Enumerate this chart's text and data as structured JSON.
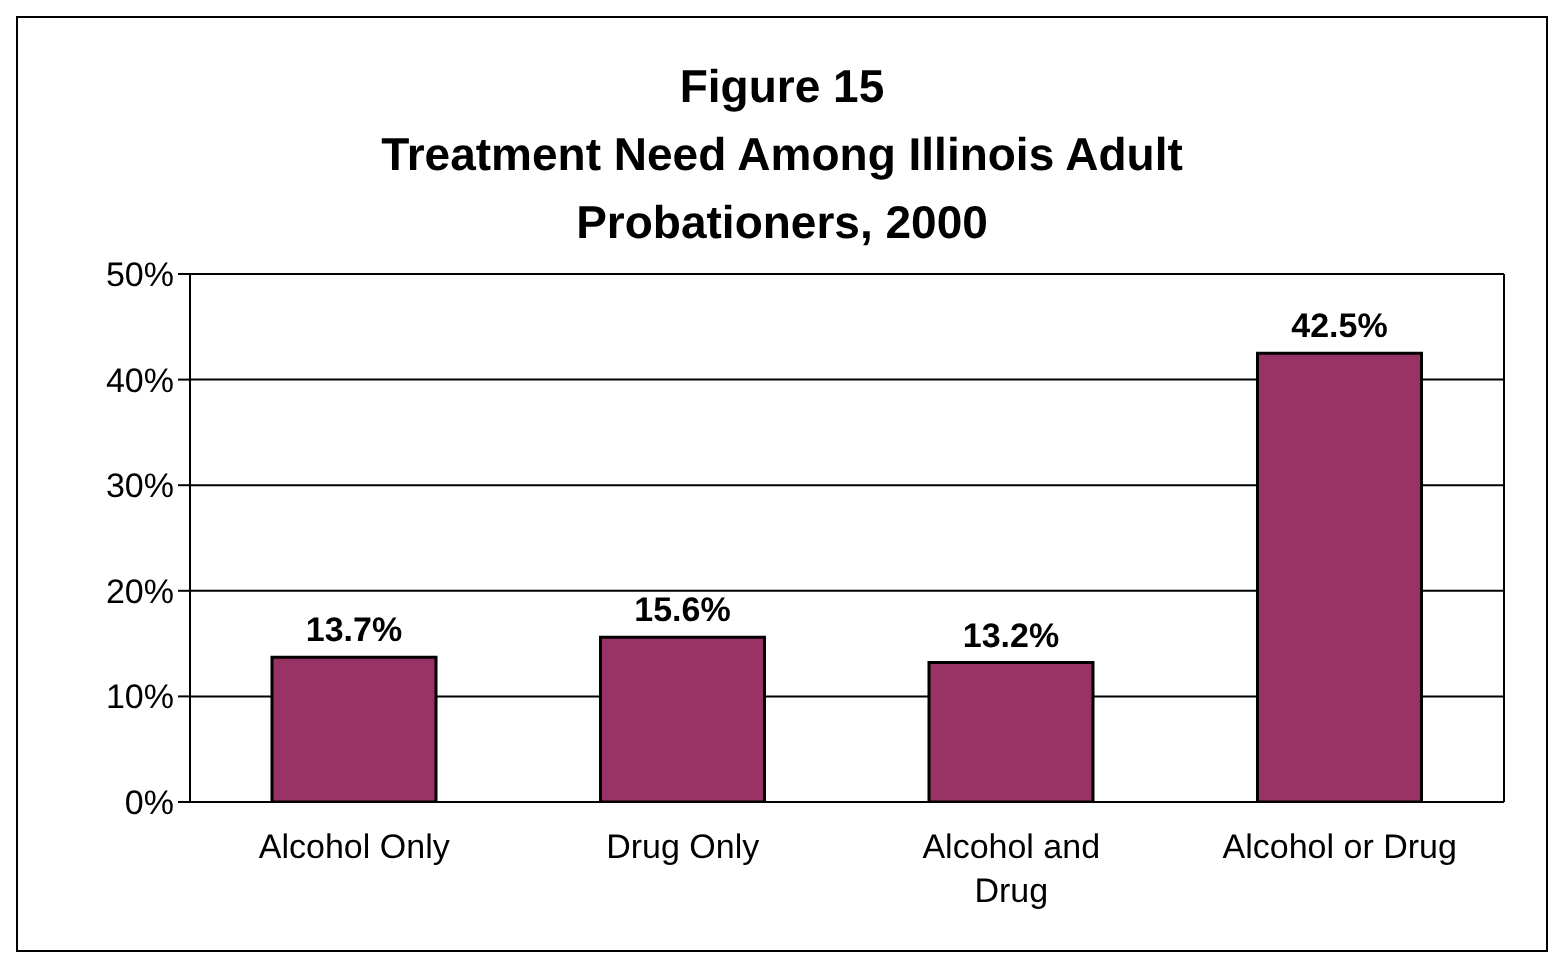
{
  "chart_data": {
    "type": "bar",
    "title": "Figure 15\nTreatment Need Among Illinois Adult\nProbationers, 2000",
    "categories": [
      "Alcohol Only",
      "Drug Only",
      "Alcohol and Drug",
      "Alcohol or Drug"
    ],
    "values": [
      13.7,
      15.6,
      13.2,
      42.5
    ],
    "color": "#993366",
    "ylim": [
      0,
      50
    ],
    "yticks": [
      {
        "value": 0,
        "label": "0%"
      },
      {
        "value": 10,
        "label": "10%"
      },
      {
        "value": 20,
        "label": "20%"
      },
      {
        "value": 30,
        "label": "30%"
      },
      {
        "value": 40,
        "label": "40%"
      },
      {
        "value": 50,
        "label": "50%"
      }
    ],
    "value_labels": [
      "13.7%",
      "15.6%",
      "13.2%",
      "42.5%"
    ],
    "grid": "y"
  }
}
